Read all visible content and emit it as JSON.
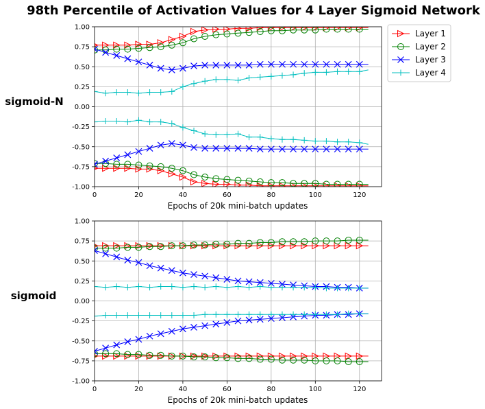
{
  "title": "98th Percentile of Activation Values for 4 Layer Sigmoid Network",
  "legend": {
    "items": [
      {
        "name": "Layer 1",
        "color": "#ff0000",
        "marker": "triangle-right"
      },
      {
        "name": "Layer 2",
        "color": "#008000",
        "marker": "circle"
      },
      {
        "name": "Layer 3",
        "color": "#0000ff",
        "marker": "x"
      },
      {
        "name": "Layer 4",
        "color": "#00bfbf",
        "marker": "plus"
      }
    ]
  },
  "chart_data": [
    {
      "type": "line",
      "row_label": "sigmoid-N",
      "xlabel": "Epochs of 20k mini-batch updates",
      "ylabel": "",
      "xlim": [
        0,
        130
      ],
      "ylim": [
        -1.0,
        1.0
      ],
      "xticks": [
        "0",
        "20",
        "40",
        "60",
        "80",
        "100",
        "120"
      ],
      "yticks": [
        "-1.00",
        "-0.75",
        "-0.50",
        "-0.25",
        "0.00",
        "0.25",
        "0.50",
        "0.75",
        "1.00"
      ],
      "grid": true,
      "x": [
        0,
        5,
        10,
        15,
        20,
        25,
        30,
        35,
        40,
        45,
        50,
        55,
        60,
        65,
        70,
        75,
        80,
        85,
        90,
        95,
        100,
        105,
        110,
        115,
        120,
        124
      ],
      "series": [
        {
          "name": "Layer 1",
          "upper": [
            0.77,
            0.77,
            0.77,
            0.77,
            0.78,
            0.78,
            0.8,
            0.84,
            0.88,
            0.94,
            0.96,
            0.97,
            0.97,
            0.98,
            0.98,
            0.99,
            0.99,
            0.99,
            0.99,
            0.99,
            0.99,
            0.99,
            0.99,
            0.99,
            0.99,
            0.99
          ],
          "lower": [
            -0.77,
            -0.77,
            -0.77,
            -0.77,
            -0.78,
            -0.78,
            -0.8,
            -0.84,
            -0.88,
            -0.94,
            -0.96,
            -0.97,
            -0.97,
            -0.98,
            -0.98,
            -0.99,
            -0.99,
            -0.99,
            -0.99,
            -0.99,
            -0.99,
            -0.99,
            -0.99,
            -0.99,
            -0.99,
            -0.99
          ]
        },
        {
          "name": "Layer 2",
          "upper": [
            0.71,
            0.71,
            0.72,
            0.72,
            0.73,
            0.74,
            0.75,
            0.77,
            0.8,
            0.85,
            0.88,
            0.9,
            0.91,
            0.92,
            0.93,
            0.94,
            0.95,
            0.95,
            0.96,
            0.96,
            0.96,
            0.97,
            0.97,
            0.97,
            0.97,
            0.97
          ],
          "lower": [
            -0.71,
            -0.71,
            -0.72,
            -0.72,
            -0.73,
            -0.74,
            -0.75,
            -0.77,
            -0.8,
            -0.85,
            -0.88,
            -0.9,
            -0.91,
            -0.92,
            -0.93,
            -0.94,
            -0.95,
            -0.95,
            -0.96,
            -0.96,
            -0.96,
            -0.97,
            -0.97,
            -0.97,
            -0.97,
            -0.97
          ]
        },
        {
          "name": "Layer 3",
          "upper": [
            0.72,
            0.68,
            0.64,
            0.6,
            0.56,
            0.52,
            0.48,
            0.46,
            0.48,
            0.51,
            0.52,
            0.52,
            0.52,
            0.52,
            0.52,
            0.53,
            0.53,
            0.53,
            0.53,
            0.53,
            0.53,
            0.53,
            0.53,
            0.53,
            0.53,
            0.53
          ],
          "lower": [
            -0.72,
            -0.68,
            -0.64,
            -0.6,
            -0.56,
            -0.52,
            -0.48,
            -0.46,
            -0.48,
            -0.51,
            -0.52,
            -0.52,
            -0.52,
            -0.52,
            -0.52,
            -0.53,
            -0.53,
            -0.53,
            -0.53,
            -0.53,
            -0.53,
            -0.53,
            -0.53,
            -0.53,
            -0.53,
            -0.53
          ]
        },
        {
          "name": "Layer 4",
          "upper": [
            0.19,
            0.17,
            0.18,
            0.18,
            0.17,
            0.18,
            0.18,
            0.19,
            0.25,
            0.29,
            0.32,
            0.34,
            0.34,
            0.33,
            0.36,
            0.37,
            0.38,
            0.39,
            0.4,
            0.42,
            0.43,
            0.43,
            0.44,
            0.44,
            0.44,
            0.46
          ],
          "lower": [
            -0.19,
            -0.18,
            -0.18,
            -0.19,
            -0.17,
            -0.19,
            -0.19,
            -0.21,
            -0.26,
            -0.3,
            -0.34,
            -0.35,
            -0.35,
            -0.34,
            -0.38,
            -0.38,
            -0.4,
            -0.41,
            -0.41,
            -0.42,
            -0.43,
            -0.43,
            -0.44,
            -0.44,
            -0.45,
            -0.47
          ]
        }
      ]
    },
    {
      "type": "line",
      "row_label": "sigmoid",
      "xlabel": "Epochs of 20k mini-batch updates",
      "ylabel": "",
      "xlim": [
        0,
        130
      ],
      "ylim": [
        -1.0,
        1.0
      ],
      "xticks": [
        "0",
        "20",
        "40",
        "60",
        "80",
        "100",
        "120"
      ],
      "yticks": [
        "-1.00",
        "-0.75",
        "-0.50",
        "-0.25",
        "0.00",
        "0.25",
        "0.50",
        "0.75",
        "1.00"
      ],
      "grid": true,
      "x": [
        0,
        5,
        10,
        15,
        20,
        25,
        30,
        35,
        40,
        45,
        50,
        55,
        60,
        65,
        70,
        75,
        80,
        85,
        90,
        95,
        100,
        105,
        110,
        115,
        120,
        124
      ],
      "series": [
        {
          "name": "Layer 1",
          "upper": [
            0.69,
            0.69,
            0.69,
            0.69,
            0.69,
            0.69,
            0.69,
            0.69,
            0.69,
            0.69,
            0.69,
            0.69,
            0.69,
            0.69,
            0.69,
            0.69,
            0.69,
            0.69,
            0.69,
            0.69,
            0.69,
            0.69,
            0.69,
            0.69,
            0.69,
            0.69
          ],
          "lower": [
            -0.69,
            -0.69,
            -0.69,
            -0.69,
            -0.69,
            -0.69,
            -0.69,
            -0.69,
            -0.69,
            -0.69,
            -0.69,
            -0.69,
            -0.69,
            -0.69,
            -0.69,
            -0.69,
            -0.69,
            -0.69,
            -0.69,
            -0.69,
            -0.69,
            -0.69,
            -0.69,
            -0.69,
            -0.69,
            -0.69
          ]
        },
        {
          "name": "Layer 2",
          "upper": [
            0.66,
            0.66,
            0.66,
            0.67,
            0.67,
            0.68,
            0.68,
            0.69,
            0.69,
            0.7,
            0.7,
            0.71,
            0.71,
            0.72,
            0.72,
            0.73,
            0.73,
            0.74,
            0.74,
            0.74,
            0.75,
            0.75,
            0.75,
            0.76,
            0.76,
            0.76
          ],
          "lower": [
            -0.66,
            -0.66,
            -0.66,
            -0.67,
            -0.67,
            -0.68,
            -0.68,
            -0.69,
            -0.69,
            -0.7,
            -0.7,
            -0.71,
            -0.71,
            -0.72,
            -0.72,
            -0.73,
            -0.73,
            -0.74,
            -0.74,
            -0.74,
            -0.75,
            -0.75,
            -0.75,
            -0.76,
            -0.76,
            -0.76
          ]
        },
        {
          "name": "Layer 3",
          "upper": [
            0.63,
            0.59,
            0.55,
            0.51,
            0.48,
            0.44,
            0.41,
            0.38,
            0.35,
            0.33,
            0.31,
            0.29,
            0.27,
            0.25,
            0.24,
            0.23,
            0.22,
            0.21,
            0.2,
            0.19,
            0.18,
            0.18,
            0.17,
            0.17,
            0.16,
            0.16
          ],
          "lower": [
            -0.63,
            -0.59,
            -0.55,
            -0.51,
            -0.48,
            -0.44,
            -0.41,
            -0.38,
            -0.35,
            -0.33,
            -0.31,
            -0.29,
            -0.27,
            -0.25,
            -0.24,
            -0.23,
            -0.22,
            -0.21,
            -0.2,
            -0.19,
            -0.18,
            -0.18,
            -0.17,
            -0.17,
            -0.16,
            -0.16
          ]
        },
        {
          "name": "Layer 4",
          "upper": [
            0.18,
            0.17,
            0.18,
            0.17,
            0.18,
            0.17,
            0.18,
            0.18,
            0.17,
            0.18,
            0.17,
            0.18,
            0.17,
            0.18,
            0.17,
            0.18,
            0.17,
            0.17,
            0.17,
            0.17,
            0.17,
            0.16,
            0.16,
            0.16,
            0.16,
            0.16
          ],
          "lower": [
            -0.19,
            -0.18,
            -0.18,
            -0.18,
            -0.18,
            -0.18,
            -0.18,
            -0.18,
            -0.18,
            -0.18,
            -0.17,
            -0.17,
            -0.17,
            -0.17,
            -0.17,
            -0.17,
            -0.17,
            -0.17,
            -0.17,
            -0.17,
            -0.17,
            -0.17,
            -0.17,
            -0.16,
            -0.16,
            -0.16
          ]
        }
      ]
    }
  ]
}
